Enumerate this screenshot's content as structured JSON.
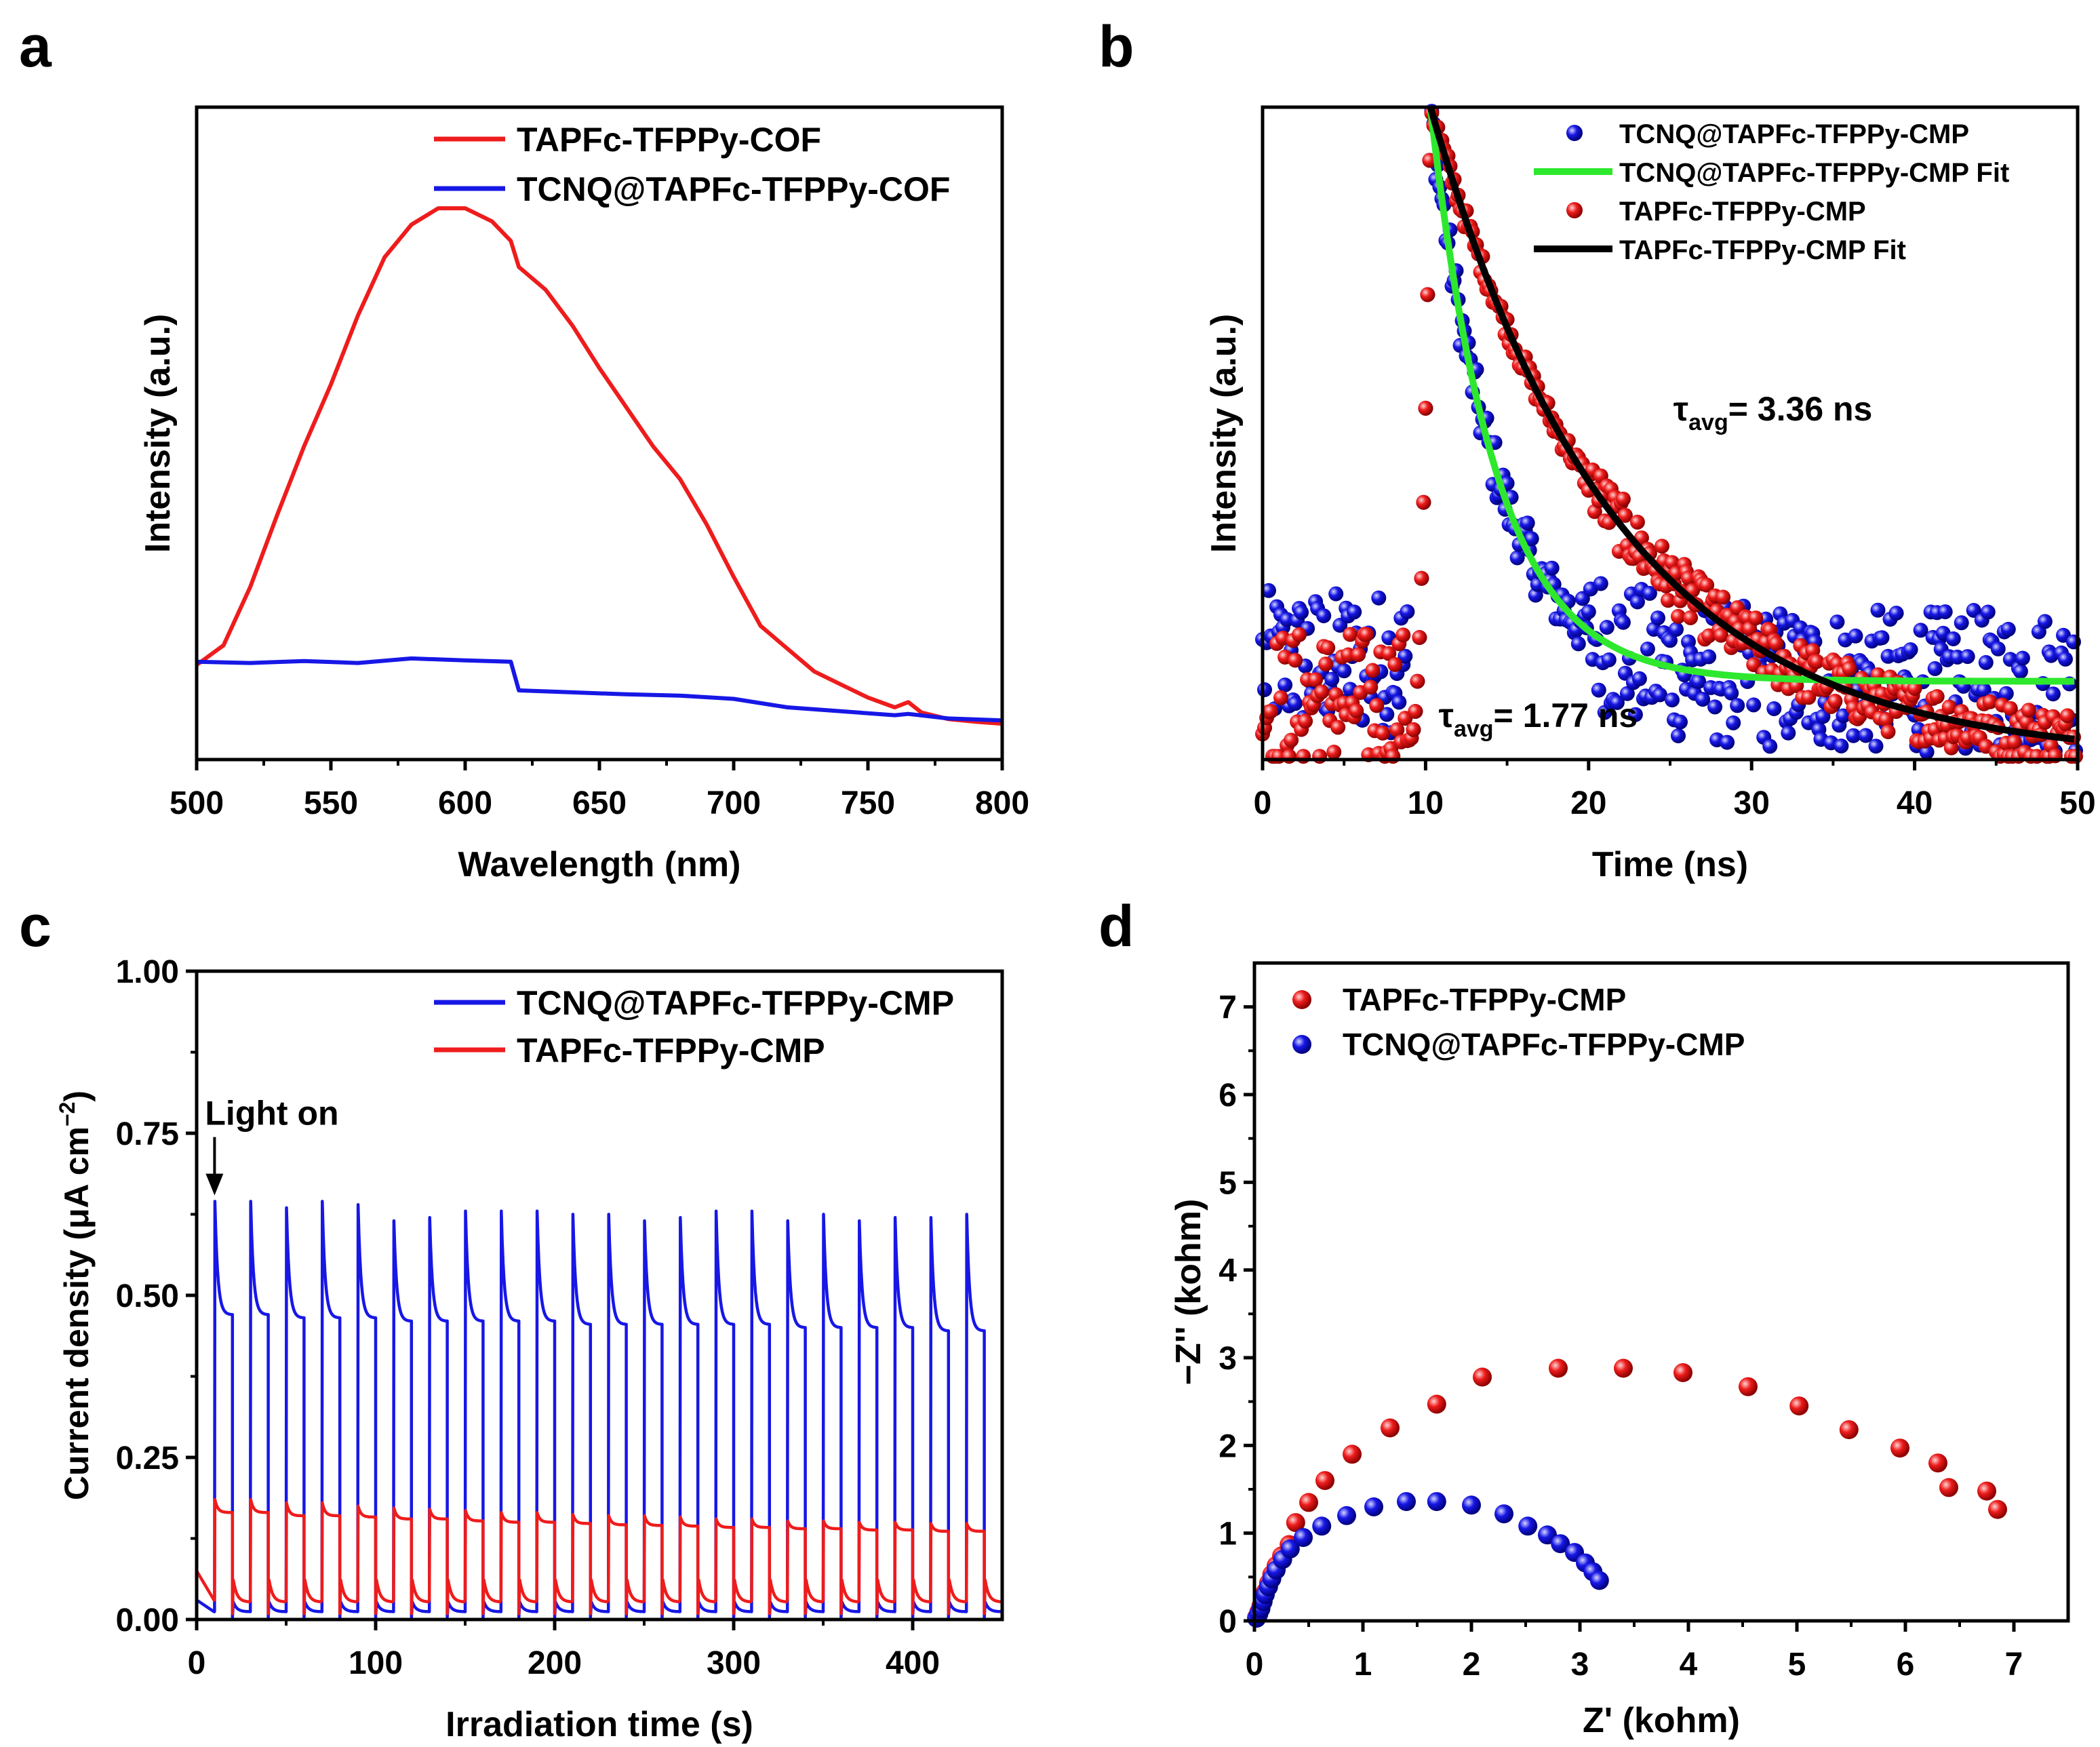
{
  "panels": {
    "a": {
      "letter": "a"
    },
    "b": {
      "letter": "b"
    },
    "c": {
      "letter": "c"
    },
    "d": {
      "letter": "d"
    }
  },
  "colors": {
    "red": "#ee1c1c",
    "blue": "#1717e6",
    "green": "#2ee82e",
    "black": "#000000"
  },
  "chart_data": [
    {
      "panel": "a",
      "type": "line",
      "title": "",
      "xlabel": "Wavelength (nm)",
      "ylabel": "Intensity (a.u.)",
      "xlim": [
        500,
        800
      ],
      "ylim": [
        0,
        1
      ],
      "xticks": [
        500,
        550,
        600,
        650,
        700,
        750,
        800
      ],
      "yticks": [],
      "legend_position": "top-right",
      "series": [
        {
          "name": "TAPFc-TFPPy-COF",
          "color": "#ee1c1c",
          "x": [
            500,
            510,
            520,
            530,
            540,
            550,
            560,
            570,
            580,
            590,
            600,
            610,
            617,
            620,
            630,
            640,
            650,
            660,
            670,
            680,
            690,
            700,
            710,
            720,
            730,
            740,
            750,
            760,
            765,
            770,
            780,
            790,
            800
          ],
          "y": [
            0.145,
            0.175,
            0.265,
            0.375,
            0.48,
            0.575,
            0.68,
            0.77,
            0.82,
            0.845,
            0.845,
            0.825,
            0.795,
            0.755,
            0.72,
            0.665,
            0.6,
            0.54,
            0.48,
            0.43,
            0.36,
            0.28,
            0.205,
            0.17,
            0.135,
            0.115,
            0.095,
            0.08,
            0.088,
            0.072,
            0.062,
            0.058,
            0.055
          ]
        },
        {
          "name": "TCNQ@TAPFc-TFPPy-COF",
          "color": "#1717e6",
          "x": [
            500,
            520,
            540,
            560,
            580,
            600,
            617,
            620,
            640,
            660,
            680,
            700,
            720,
            740,
            760,
            765,
            780,
            800
          ],
          "y": [
            0.15,
            0.148,
            0.151,
            0.148,
            0.155,
            0.152,
            0.15,
            0.106,
            0.103,
            0.1,
            0.098,
            0.093,
            0.08,
            0.074,
            0.068,
            0.07,
            0.063,
            0.06
          ]
        }
      ]
    },
    {
      "panel": "b",
      "type": "scatter",
      "title": "",
      "xlabel": "Time (ns)",
      "ylabel": "Intensity (a.u.)",
      "xlim": [
        0,
        50
      ],
      "ylim": [
        0,
        1
      ],
      "xticks": [
        0,
        10,
        20,
        30,
        40,
        50
      ],
      "yticks": [],
      "legend_position": "top-right",
      "series": [
        {
          "name": "TCNQ@TAPFc-TFPPy-CMP",
          "style": "markers",
          "color": "#1717e6",
          "rise_at": 10.3,
          "baseline": 0.12,
          "tau": 4.0
        },
        {
          "name": "TCNQ@TAPFc-TFPPy-CMP Fit",
          "style": "line",
          "color": "#2ee82e",
          "x0": 10.3,
          "baseline": 0.12,
          "tau": 4.0
        },
        {
          "name": "TAPFc-TFPPy-CMP",
          "style": "markers",
          "color": "#ee1c1c",
          "rise_at": 10.3,
          "baseline": 0.0,
          "tau": 11.4
        },
        {
          "name": "TAPFc-TFPPy-CMP Fit",
          "style": "line",
          "color": "#000000",
          "x0": 10.3,
          "baseline": 0.0,
          "tau": 11.4
        }
      ],
      "annotations": [
        {
          "tau_symbol": "τ",
          "subscript": "avg",
          "text": "= 3.36 ns",
          "color": "#ee1c1c",
          "x": 25.2,
          "y": 0.52
        },
        {
          "tau_symbol": "τ",
          "subscript": "avg",
          "text": "= 1.77 ns",
          "color": "#1717e6",
          "x": 10.8,
          "y": 0.05
        }
      ]
    },
    {
      "panel": "c",
      "type": "line",
      "title": "",
      "xlabel": "Irradiation time (s)",
      "ylabel": "Current density (μA cm⁻²)",
      "ylabel_parts": {
        "main": "Current density (μA cm",
        "sup": "−2",
        "close": ")"
      },
      "xlim": [
        0,
        450
      ],
      "ylim": [
        0,
        1
      ],
      "xticks": [
        0,
        100,
        200,
        300,
        400
      ],
      "yticks": [
        "0.00",
        "0.25",
        "0.50",
        "0.75",
        "1.00"
      ],
      "legend_position": "top-right",
      "annotation": {
        "text": "Light on",
        "x": 10,
        "y": 0.65
      },
      "cycle": {
        "period": 20,
        "on_duration": 10,
        "first_on": 10,
        "count": 22
      },
      "series": [
        {
          "name": "TCNQ@TAPFc-TFPPy-CMP",
          "color": "#1717e6",
          "peaks": [
            0.645,
            0.645,
            0.635,
            0.645,
            0.64,
            0.615,
            0.62,
            0.63,
            0.63,
            0.63,
            0.625,
            0.625,
            0.615,
            0.62,
            0.63,
            0.63,
            0.615,
            0.625,
            0.615,
            0.62,
            0.62,
            0.625
          ],
          "plateau": [
            0.47,
            0.47,
            0.465,
            0.465,
            0.465,
            0.46,
            0.46,
            0.46,
            0.46,
            0.46,
            0.455,
            0.455,
            0.455,
            0.455,
            0.455,
            0.455,
            0.45,
            0.45,
            0.45,
            0.45,
            0.445,
            0.445
          ],
          "dark": 0.012
        },
        {
          "name": "TAPFc-TFPPy-CMP",
          "color": "#ee1c1c",
          "peaks": [
            0.185,
            0.185,
            0.18,
            0.18,
            0.175,
            0.172,
            0.17,
            0.168,
            0.165,
            0.165,
            0.162,
            0.16,
            0.16,
            0.158,
            0.155,
            0.155,
            0.152,
            0.152,
            0.15,
            0.15,
            0.148,
            0.148
          ],
          "plateau": [
            0.165,
            0.165,
            0.16,
            0.16,
            0.158,
            0.155,
            0.155,
            0.152,
            0.15,
            0.15,
            0.148,
            0.146,
            0.145,
            0.144,
            0.142,
            0.142,
            0.14,
            0.14,
            0.138,
            0.138,
            0.136,
            0.136
          ],
          "dark": 0.03
        }
      ]
    },
    {
      "panel": "d",
      "type": "scatter",
      "title": "",
      "xlabel": "Z' (kohm)",
      "ylabel": "−Z'' (kohm)",
      "xlim": [
        0,
        7.5
      ],
      "ylim": [
        0,
        7.5
      ],
      "xticks": [
        0,
        1,
        2,
        3,
        4,
        5,
        6,
        7
      ],
      "yticks": [
        0,
        1,
        2,
        3,
        4,
        5,
        6,
        7
      ],
      "legend_position": "top-left",
      "series": [
        {
          "name": "TAPFc-TFPPy-CMP",
          "color": "#ee1c1c",
          "x": [
            0.02,
            0.04,
            0.06,
            0.08,
            0.1,
            0.13,
            0.16,
            0.2,
            0.25,
            0.32,
            0.38,
            0.5,
            0.65,
            0.9,
            1.25,
            1.68,
            2.1,
            2.8,
            3.4,
            3.95,
            4.55,
            5.02,
            5.48,
            5.95,
            6.3,
            6.4,
            6.75,
            6.85
          ],
          "y": [
            0.04,
            0.1,
            0.17,
            0.25,
            0.33,
            0.43,
            0.53,
            0.63,
            0.74,
            0.87,
            1.12,
            1.35,
            1.6,
            1.9,
            2.2,
            2.47,
            2.78,
            2.88,
            2.88,
            2.83,
            2.67,
            2.45,
            2.18,
            1.97,
            1.8,
            1.52,
            1.48,
            1.27
          ]
        },
        {
          "name": "TCNQ@TAPFc-TFPPy-CMP",
          "color": "#1717e6",
          "x": [
            0.02,
            0.04,
            0.06,
            0.08,
            0.1,
            0.13,
            0.16,
            0.2,
            0.26,
            0.33,
            0.45,
            0.62,
            0.85,
            1.1,
            1.4,
            1.68,
            2.0,
            2.3,
            2.52,
            2.7,
            2.82,
            2.95,
            3.05,
            3.12,
            3.18
          ],
          "y": [
            0.03,
            0.08,
            0.14,
            0.22,
            0.3,
            0.39,
            0.48,
            0.58,
            0.7,
            0.82,
            0.95,
            1.08,
            1.2,
            1.3,
            1.36,
            1.36,
            1.32,
            1.22,
            1.08,
            0.98,
            0.88,
            0.78,
            0.66,
            0.56,
            0.46
          ]
        }
      ]
    }
  ]
}
